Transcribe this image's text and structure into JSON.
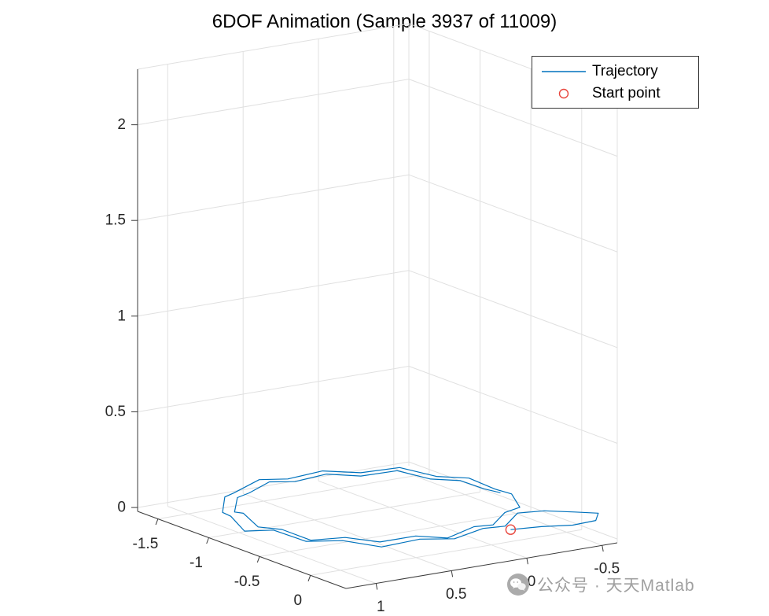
{
  "title": "6DOF Animation (Sample 3937 of 11009)",
  "legend": {
    "items": [
      {
        "label": "Trajectory",
        "swatch": "line",
        "color": "#0072BD"
      },
      {
        "label": "Start point",
        "swatch": "open-circle",
        "color": "#e8453c"
      }
    ]
  },
  "watermark": {
    "icon": "wechat-icon",
    "text": "公众号 · 天天Matlab"
  },
  "chart_data": {
    "type": "line",
    "projection": "3d",
    "title": "6DOF Animation (Sample 3937 of 11009)",
    "grid": true,
    "legend_position": "northeast",
    "axes": {
      "x_bottom_left": {
        "ticks": [
          -1.5,
          -1,
          -0.5,
          0
        ],
        "lim": [
          -1.7,
          0.35
        ]
      },
      "y_bottom_right": {
        "ticks": [
          1,
          0.5,
          0,
          -0.5
        ],
        "lim": [
          1.2,
          -0.6
        ]
      },
      "z_vertical": {
        "ticks": [
          0,
          0.5,
          1,
          1.5,
          2
        ],
        "lim": [
          -0.02,
          2.29
        ]
      }
    },
    "series": [
      {
        "name": "Trajectory",
        "type": "line3d",
        "color": "#0072BD",
        "points": [
          [
            -0.15,
            -0.23,
            0.0
          ],
          [
            -0.04,
            -0.36,
            0.02
          ],
          [
            0.03,
            -0.52,
            0.02
          ],
          [
            0.05,
            -0.66,
            0.03
          ],
          [
            0.03,
            -0.69,
            0.06
          ],
          [
            -0.1,
            -0.62,
            0.05
          ],
          [
            -0.25,
            -0.52,
            0.04
          ],
          [
            -0.29,
            -0.37,
            0.04
          ],
          [
            -0.16,
            -0.2,
            0.02
          ],
          [
            -0.08,
            0.0,
            0.05
          ],
          [
            -0.05,
            0.21,
            0.03
          ],
          [
            -0.08,
            0.42,
            0.05
          ],
          [
            -0.16,
            0.62,
            0.02
          ],
          [
            -0.29,
            0.79,
            0.05
          ],
          [
            -0.46,
            0.92,
            0.03
          ],
          [
            -0.66,
            1.0,
            0.06
          ],
          [
            -0.87,
            1.05,
            0.02
          ],
          [
            -1.08,
            1.0,
            0.05
          ],
          [
            -1.28,
            0.92,
            0.02
          ],
          [
            -1.45,
            0.79,
            0.05
          ],
          [
            -1.6,
            0.63,
            0.02
          ],
          [
            -1.66,
            0.42,
            0.05
          ],
          [
            -1.69,
            0.21,
            0.02
          ],
          [
            -1.66,
            0.0,
            0.04
          ],
          [
            -1.58,
            -0.2,
            0.02
          ],
          [
            -1.45,
            -0.37,
            0.05
          ],
          [
            -1.28,
            -0.5,
            0.02
          ],
          [
            -1.08,
            -0.58,
            0.04
          ],
          [
            -0.87,
            -0.61,
            0.02
          ],
          [
            -0.66,
            -0.58,
            0.04
          ],
          [
            -0.46,
            -0.5,
            0.02
          ],
          [
            -0.34,
            -0.32,
            0.04
          ],
          [
            -0.22,
            -0.16,
            0.02
          ],
          [
            -0.14,
            0.02,
            0.05
          ],
          [
            -0.12,
            0.21,
            0.02
          ],
          [
            -0.15,
            0.4,
            0.05
          ],
          [
            -0.22,
            0.59,
            0.03
          ],
          [
            -0.34,
            0.74,
            0.05
          ],
          [
            -0.5,
            0.86,
            0.02
          ],
          [
            -0.68,
            0.93,
            0.05
          ],
          [
            -0.87,
            0.96,
            0.03
          ],
          [
            -1.06,
            0.93,
            0.06
          ],
          [
            -1.25,
            0.86,
            0.02
          ],
          [
            -1.4,
            0.74,
            0.05
          ],
          [
            -1.52,
            0.58,
            0.03
          ],
          [
            -1.59,
            0.4,
            0.05
          ],
          [
            -1.62,
            0.21,
            0.02
          ],
          [
            -1.59,
            0.02,
            0.04
          ],
          [
            -1.52,
            -0.16,
            0.02
          ],
          [
            -1.4,
            -0.32,
            0.05
          ],
          [
            -1.25,
            -0.44,
            0.02
          ],
          [
            -1.06,
            -0.51,
            0.04
          ],
          [
            -0.87,
            -0.54,
            0.03
          ],
          [
            -0.68,
            -0.52,
            0.05
          ]
        ]
      },
      {
        "name": "Start point",
        "type": "marker3d",
        "marker": "o",
        "color": "#e8453c",
        "points": [
          [
            -0.15,
            -0.23,
            0.0
          ]
        ]
      }
    ]
  }
}
